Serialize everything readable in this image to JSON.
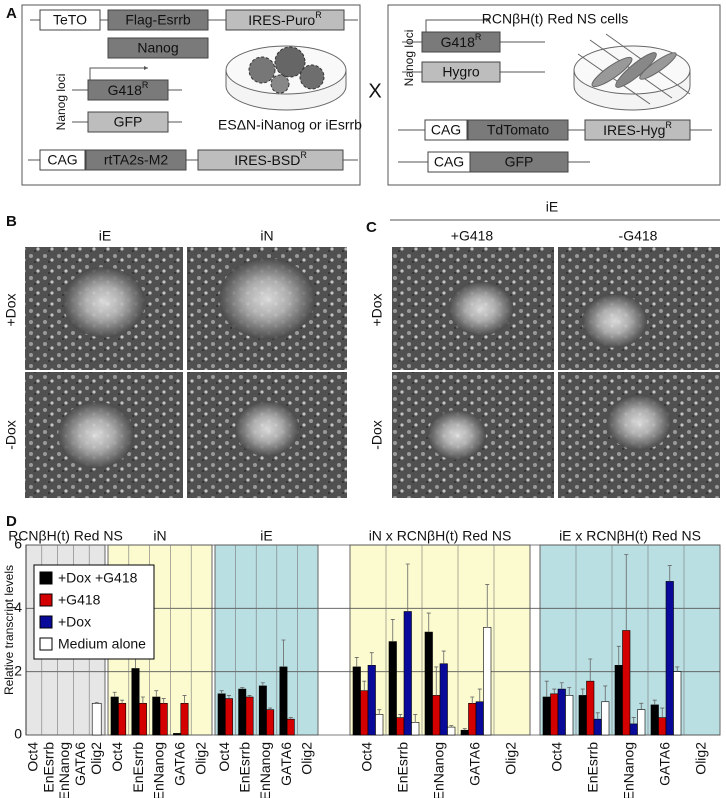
{
  "panel_a": {
    "label": "A",
    "left": {
      "construct1": [
        "TeTO",
        "Flag-Esrrb",
        {
          "text": "IRES-Puro",
          "sup": "R"
        }
      ],
      "nanog": "Nanog",
      "loci_label": "Nanog loci",
      "g418": {
        "text": "G418",
        "sup": "R"
      },
      "gfp": "GFP",
      "cells_label": "ESΔN-iNanog or iEsrrb",
      "construct2": [
        "CAG",
        "rtTA2s-M2",
        {
          "text": "IRES-BSD",
          "sup": "R"
        }
      ]
    },
    "cross": "X",
    "right": {
      "loci_label": "Nanog loci",
      "g418": {
        "text": "G418",
        "sup": "R"
      },
      "hygro": "Hygro",
      "cells_label": "RCNβH(t) Red NS cells",
      "construct1": [
        "CAG",
        "TdTomato",
        {
          "text": "IRES-Hyg",
          "sup": "R"
        }
      ],
      "construct2": [
        "CAG",
        "GFP"
      ]
    }
  },
  "panel_b": {
    "label": "B",
    "columns": [
      "iE",
      "iN"
    ],
    "rows": [
      "+Dox",
      "-Dox"
    ]
  },
  "panel_c": {
    "label": "C",
    "header": "iE",
    "columns": [
      "+G418",
      "-G418"
    ],
    "rows": [
      "+Dox",
      "-Dox"
    ]
  },
  "panel_d": {
    "label": "D",
    "chart_data": {
      "type": "bar",
      "ylabel": "Relative transcript levels",
      "ylim": [
        0,
        6
      ],
      "yticks": [
        0,
        2,
        4,
        6
      ],
      "grid": true,
      "legend": "upper left",
      "series": [
        {
          "name": "+Dox +G418",
          "color": "#000000"
        },
        {
          "name": "+G418",
          "color": "#d40000"
        },
        {
          "name": "+Dox",
          "color": "#0a0a9a"
        },
        {
          "name": "Medium alone",
          "color": "#ffffff"
        }
      ],
      "groups": [
        {
          "title": "RCNβH(t) Red NS",
          "background": "#e6e6e6",
          "categories": [
            "Oct4",
            "EnEsrrb",
            "EnNanog",
            "GATA6",
            "Olig2"
          ],
          "series": [
            {
              "values": [
                null,
                null,
                null,
                null,
                null
              ],
              "errors": [
                null,
                null,
                null,
                null,
                null
              ]
            },
            {
              "values": [
                null,
                null,
                null,
                null,
                null
              ],
              "errors": [
                null,
                null,
                null,
                null,
                null
              ]
            },
            {
              "values": [
                null,
                null,
                null,
                null,
                null
              ],
              "errors": [
                null,
                null,
                null,
                null,
                null
              ]
            },
            {
              "values": [
                null,
                null,
                null,
                null,
                1.0
              ],
              "errors": [
                null,
                null,
                null,
                null,
                0.03
              ]
            }
          ]
        },
        {
          "title": "iN",
          "background": "#fbfbcf",
          "categories": [
            "Oct4",
            "EnEsrrb",
            "EnNanog",
            "GATA6",
            "Olig2"
          ],
          "series": [
            {
              "values": [
                1.2,
                2.1,
                1.2,
                0.05,
                null
              ],
              "errors": [
                0.15,
                0.45,
                0.2,
                null,
                null
              ]
            },
            {
              "values": [
                1.0,
                1.0,
                1.0,
                1.0,
                null
              ],
              "errors": [
                0.1,
                0.2,
                0.15,
                0.25,
                null
              ]
            },
            {
              "values": [
                null,
                null,
                null,
                null,
                null
              ],
              "errors": [
                null,
                null,
                null,
                null,
                null
              ]
            },
            {
              "values": [
                null,
                null,
                null,
                null,
                null
              ],
              "errors": [
                null,
                null,
                null,
                null,
                null
              ]
            }
          ]
        },
        {
          "title": "iE",
          "background": "#b9dfe3",
          "categories": [
            "Oct4",
            "EnEsrrb",
            "EnNanog",
            "GATA6",
            "Olig2"
          ],
          "series": [
            {
              "values": [
                1.3,
                1.45,
                1.55,
                2.15,
                null
              ],
              "errors": [
                0.1,
                0.05,
                0.1,
                0.85,
                null
              ]
            },
            {
              "values": [
                1.15,
                1.2,
                0.8,
                0.5,
                null
              ],
              "errors": [
                0.1,
                0.05,
                0.05,
                0.05,
                null
              ]
            },
            {
              "values": [
                null,
                null,
                null,
                null,
                null
              ],
              "errors": [
                null,
                null,
                null,
                null,
                null
              ]
            },
            {
              "values": [
                null,
                null,
                null,
                null,
                null
              ],
              "errors": [
                null,
                null,
                null,
                null,
                null
              ]
            }
          ]
        },
        {
          "title": "iN  x  RCNβH(t) Red NS",
          "background": "#fbfbcf",
          "categories": [
            "Oct4",
            "EnEsrrb",
            "EnNanog",
            "GATA6",
            "Olig2"
          ],
          "series": [
            {
              "values": [
                2.15,
                2.95,
                3.25,
                0.15,
                null
              ],
              "errors": [
                0.3,
                0.7,
                0.6,
                0.05,
                null
              ]
            },
            {
              "values": [
                1.4,
                0.55,
                1.25,
                1.0,
                null
              ],
              "errors": [
                0.3,
                0.1,
                0.9,
                0.2,
                null
              ]
            },
            {
              "values": [
                2.2,
                3.9,
                2.25,
                1.05,
                null
              ],
              "errors": [
                0.4,
                1.5,
                0.4,
                0.4,
                null
              ]
            },
            {
              "values": [
                0.65,
                0.4,
                0.25,
                3.4,
                null
              ],
              "errors": [
                0.15,
                0.25,
                0.05,
                1.35,
                null
              ]
            }
          ]
        },
        {
          "title": "iE  x  RCNβH(t) Red NS",
          "background": "#b9dfe3",
          "categories": [
            "Oct4",
            "EnEsrrb",
            "EnNanog",
            "GATA6",
            "Olig2"
          ],
          "series": [
            {
              "values": [
                1.2,
                1.25,
                2.2,
                0.95,
                null
              ],
              "errors": [
                0.5,
                0.2,
                0.6,
                0.15,
                null
              ]
            },
            {
              "values": [
                1.3,
                1.7,
                3.3,
                0.55,
                null
              ],
              "errors": [
                0.15,
                0.7,
                2.4,
                0.3,
                null
              ]
            },
            {
              "values": [
                1.45,
                0.5,
                0.35,
                4.85,
                null
              ],
              "errors": [
                0.2,
                0.2,
                0.2,
                0.5,
                null
              ]
            },
            {
              "values": [
                1.25,
                1.05,
                0.8,
                2.0,
                null
              ],
              "errors": [
                0.25,
                0.5,
                0.2,
                0.15,
                null
              ]
            }
          ]
        }
      ]
    }
  }
}
